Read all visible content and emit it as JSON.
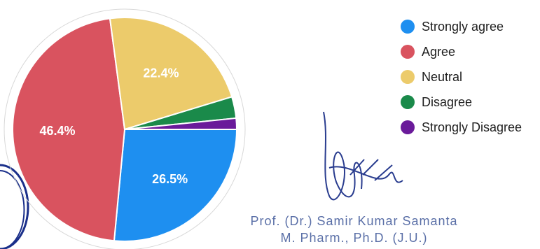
{
  "chart_data": {
    "type": "pie",
    "categories": [
      "Strongly agree",
      "Agree",
      "Neutral",
      "Disagree",
      "Strongly Disagree"
    ],
    "values": [
      26.5,
      46.4,
      22.4,
      3.1,
      1.6
    ],
    "labels": [
      "26.5%",
      "46.4%",
      "22.4%",
      "",
      ""
    ],
    "colors": [
      "#1e8ff0",
      "#d9535f",
      "#eccb6b",
      "#1a8a4a",
      "#6a1a9a"
    ],
    "legend_position": "right"
  },
  "signature": {
    "name_line": "Prof. (Dr.) Samir Kumar Samanta",
    "qual_line": "M. Pharm., Ph.D. (J.U.)"
  }
}
